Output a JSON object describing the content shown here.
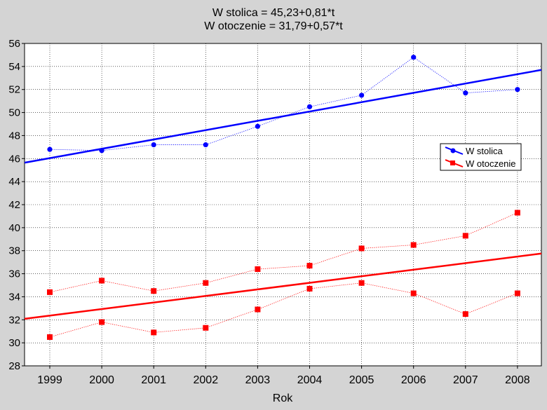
{
  "chart_data": {
    "type": "line",
    "title_lines": [
      "W stolica = 45,23+0,81*t",
      "W otoczenie = 31,79+0,57*t"
    ],
    "xlabel": "Rok",
    "ylabel": "",
    "categories": [
      "1999",
      "2000",
      "2001",
      "2002",
      "2003",
      "2004",
      "2005",
      "2006",
      "2007",
      "2008"
    ],
    "ylim": [
      28,
      56
    ],
    "yticks": [
      28,
      30,
      32,
      34,
      36,
      38,
      40,
      42,
      44,
      46,
      48,
      50,
      52,
      54,
      56
    ],
    "grid": true,
    "legend_position": "right",
    "series": [
      {
        "name": "W stolica",
        "marker": "circle",
        "color": "#0000ff",
        "values": [
          46.8,
          46.7,
          47.2,
          47.2,
          48.8,
          50.5,
          51.5,
          54.8,
          51.7,
          52.0
        ],
        "trend": {
          "intercept": 45.23,
          "slope": 0.81
        }
      },
      {
        "name": "W otoczenie",
        "marker": "square",
        "color": "#ff0000",
        "values_upper": [
          34.4,
          35.4,
          34.5,
          35.2,
          36.4,
          36.7,
          38.2,
          38.5,
          39.3,
          41.3
        ],
        "values_lower": [
          30.5,
          31.8,
          30.9,
          31.3,
          32.9,
          34.7,
          35.2,
          34.3,
          32.5,
          34.3
        ],
        "trend": {
          "intercept": 31.79,
          "slope": 0.57
        }
      }
    ]
  }
}
